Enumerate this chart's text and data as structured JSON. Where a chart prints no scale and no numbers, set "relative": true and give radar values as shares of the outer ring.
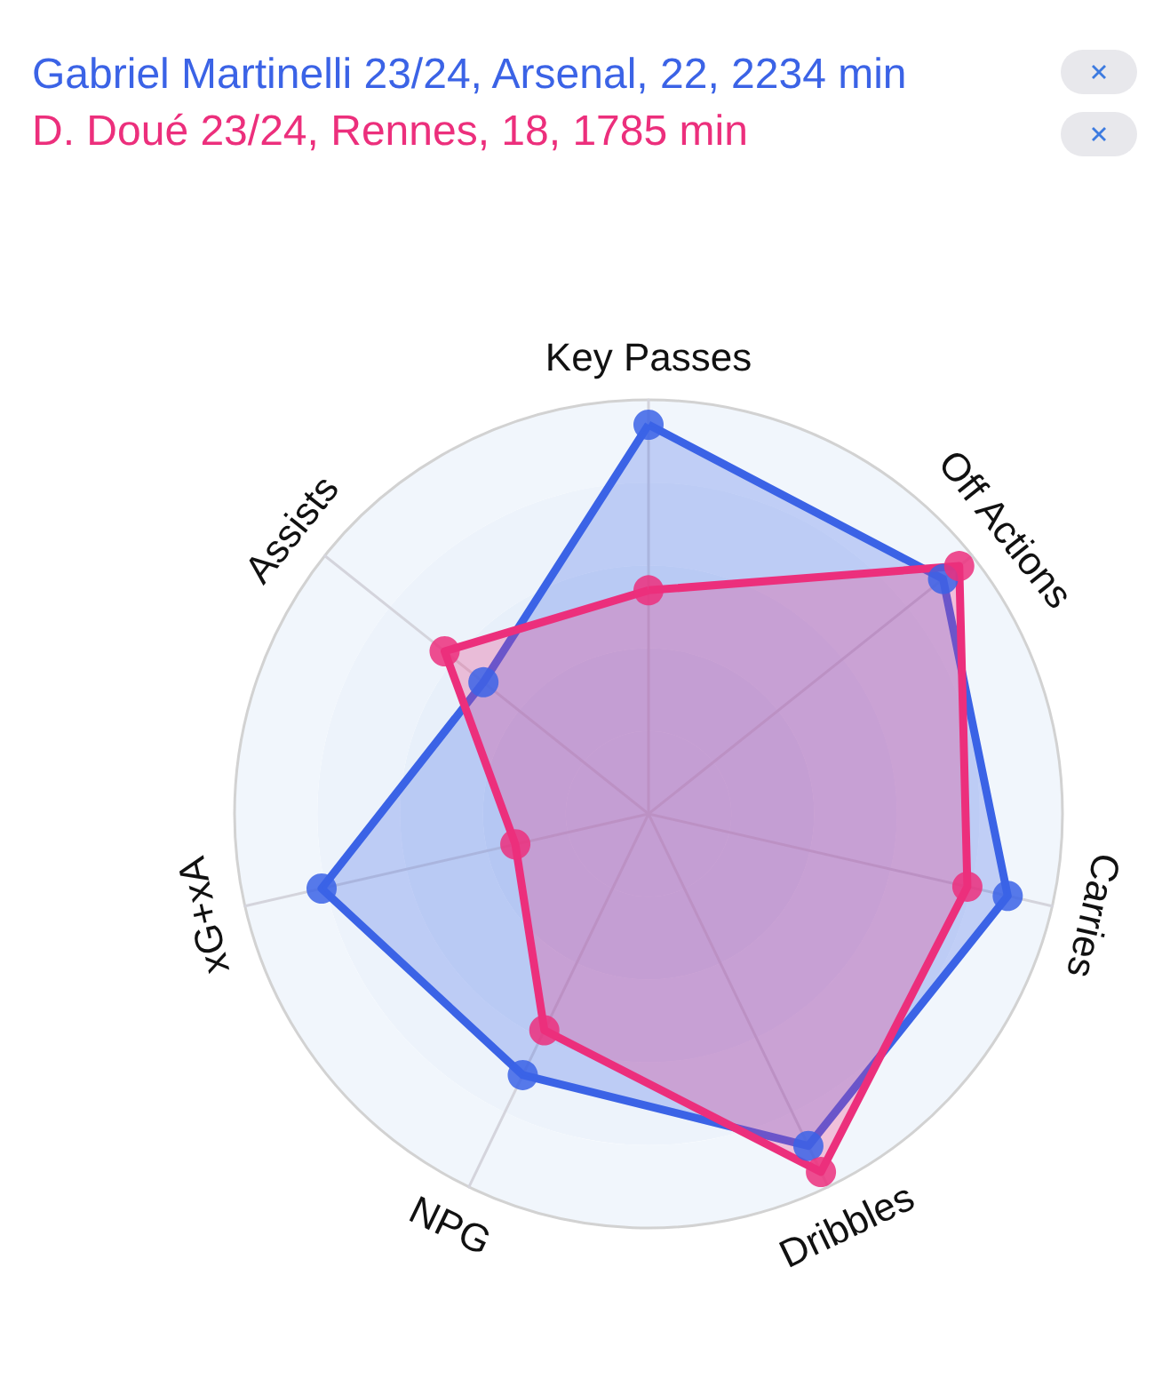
{
  "chart_data": {
    "type": "radar",
    "relative": true,
    "categories": [
      "Key Passes",
      "Off Actions",
      "Carries",
      "Dribbles",
      "NPG",
      "xG+xA",
      "Assists"
    ],
    "series": [
      {
        "name": "Gabriel Martinelli 23/24, Arsenal, 22, 2234 min",
        "color": "#3b63e6",
        "values": [
          0.94,
          0.91,
          0.89,
          0.89,
          0.7,
          0.81,
          0.51
        ]
      },
      {
        "name": "D. Doué 23/24, Rennes, 18, 1785 min",
        "color": "#ec2f7c",
        "values": [
          0.54,
          0.96,
          0.79,
          0.96,
          0.58,
          0.33,
          0.63
        ]
      }
    ],
    "legend": "top left",
    "grid": true,
    "marker": "circle",
    "line_style": "solid"
  }
}
